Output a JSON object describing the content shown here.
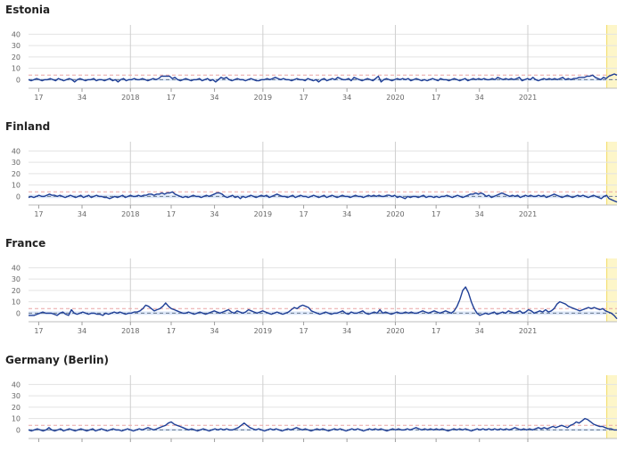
{
  "colors": {
    "series": "#1f3f96",
    "band": "#dbe6f8",
    "baseline": "#6b7a8c",
    "threshold": "#e9a5a5",
    "highlight": "#fdf6c9",
    "highlight_edge": "#f3dc63",
    "grid": "#e3e3e3",
    "year_line": "#cfcfcf"
  },
  "chart_data": [
    {
      "type": "line",
      "title": "Estonia",
      "yticks": [
        0,
        10,
        20,
        30,
        40
      ],
      "ylim": [
        -6,
        45
      ],
      "xlim": [
        0,
        231
      ],
      "xticks": [
        {
          "x": 4,
          "label": "17"
        },
        {
          "x": 21,
          "label": "34"
        },
        {
          "x": 40,
          "label": "2018"
        },
        {
          "x": 56,
          "label": "17"
        },
        {
          "x": 73,
          "label": "34"
        },
        {
          "x": 92,
          "label": "2019"
        },
        {
          "x": 108,
          "label": "17"
        },
        {
          "x": 125,
          "label": "34"
        },
        {
          "x": 144,
          "label": "2020"
        },
        {
          "x": 160,
          "label": "17"
        },
        {
          "x": 177,
          "label": "34"
        },
        {
          "x": 196,
          "label": "2021"
        }
      ],
      "year_lines": [
        40,
        92,
        144,
        196
      ],
      "threshold": 4,
      "baseline": 0,
      "band": [
        -1,
        1
      ],
      "highlight_from": 227,
      "series": [
        {
          "values": [
            0,
            -1,
            0,
            1,
            0,
            -1,
            0,
            0,
            1,
            0,
            -1,
            1,
            0,
            -1,
            0,
            1,
            0,
            -2,
            0,
            1,
            0,
            -1,
            0,
            0,
            1,
            -1,
            0,
            0,
            -1,
            0,
            1,
            -1,
            0,
            -2,
            0,
            1,
            -1,
            0,
            0,
            1,
            0,
            0,
            1,
            0,
            -1,
            0,
            1,
            0,
            1,
            3,
            3,
            3,
            3,
            1,
            2,
            0,
            -1,
            0,
            1,
            0,
            -1,
            0,
            0,
            1,
            -1,
            0,
            1,
            -1,
            0,
            -2,
            0,
            2,
            1,
            2,
            0,
            -1,
            0,
            1,
            0,
            0,
            -1,
            0,
            1,
            0,
            -1,
            -1,
            0,
            0,
            1,
            0,
            1,
            2,
            1,
            0,
            1,
            0,
            0,
            -1,
            0,
            1,
            0,
            0,
            -1,
            1,
            0,
            -1,
            0,
            -2,
            0,
            1,
            -1,
            0,
            1,
            0,
            2,
            1,
            0,
            0,
            1,
            -1,
            2,
            1,
            0,
            -1,
            0,
            1,
            0,
            -1,
            1,
            3,
            -2,
            0,
            1,
            0,
            -1,
            0,
            1,
            0,
            1,
            0,
            1,
            -1,
            0,
            1,
            0,
            -1,
            0,
            -1,
            0,
            1,
            0,
            -1,
            1,
            0,
            0,
            -1,
            0,
            1,
            0,
            -1,
            0,
            1,
            -1,
            0,
            1,
            0,
            1,
            0,
            1,
            0,
            0,
            1,
            0,
            2,
            1,
            0,
            1,
            0,
            1,
            0,
            1,
            2,
            -1,
            0,
            1,
            0,
            2,
            0,
            -1,
            0,
            1,
            0,
            1,
            0,
            1,
            0,
            1,
            2,
            0,
            1,
            0,
            1,
            1,
            2,
            2,
            2,
            3,
            3,
            4,
            2,
            1,
            0,
            2,
            1,
            3,
            4,
            5,
            4
          ]
        }
      ]
    },
    {
      "type": "line",
      "title": "Finland",
      "yticks": [
        0,
        10,
        20,
        30,
        40
      ],
      "ylim": [
        -6,
        45
      ],
      "xlim": [
        0,
        231
      ],
      "xticks": [
        {
          "x": 4,
          "label": "17"
        },
        {
          "x": 21,
          "label": "34"
        },
        {
          "x": 40,
          "label": "2018"
        },
        {
          "x": 56,
          "label": "17"
        },
        {
          "x": 73,
          "label": "34"
        },
        {
          "x": 92,
          "label": "2019"
        },
        {
          "x": 108,
          "label": "17"
        },
        {
          "x": 125,
          "label": "34"
        },
        {
          "x": 144,
          "label": "2020"
        },
        {
          "x": 160,
          "label": "17"
        },
        {
          "x": 177,
          "label": "34"
        },
        {
          "x": 196,
          "label": "2021"
        }
      ],
      "year_lines": [
        40,
        92,
        144,
        196
      ],
      "threshold": 4,
      "baseline": 0,
      "band": [
        -1.5,
        1.5
      ],
      "highlight_from": 227,
      "series": [
        {
          "values": [
            -1,
            0,
            -1,
            0,
            1,
            0,
            0,
            1,
            2,
            1,
            1,
            0,
            1,
            0,
            -1,
            0,
            1,
            0,
            -1,
            0,
            1,
            -1,
            0,
            1,
            -1,
            0,
            1,
            0,
            0,
            -1,
            -1,
            -2,
            -1,
            0,
            -1,
            0,
            1,
            -1,
            0,
            1,
            0,
            0,
            1,
            0,
            1,
            1,
            2,
            2,
            1,
            2,
            2,
            3,
            2,
            3,
            3,
            4,
            2,
            1,
            0,
            -1,
            0,
            -1,
            0,
            1,
            0,
            0,
            -1,
            0,
            1,
            0,
            1,
            2,
            3,
            3,
            2,
            0,
            -1,
            0,
            1,
            -1,
            0,
            -2,
            0,
            -1,
            0,
            1,
            0,
            -1,
            0,
            1,
            0,
            1,
            -1,
            0,
            1,
            2,
            1,
            0,
            0,
            -1,
            0,
            1,
            -1,
            0,
            1,
            0,
            0,
            -1,
            0,
            1,
            0,
            -1,
            0,
            1,
            -1,
            0,
            1,
            0,
            -1,
            0,
            1,
            0,
            0,
            -1,
            0,
            1,
            0,
            0,
            -1,
            0,
            1,
            0,
            1,
            0,
            1,
            0,
            0,
            1,
            1,
            0,
            1,
            -1,
            0,
            -1,
            -2,
            0,
            -1,
            0,
            0,
            -1,
            0,
            1,
            -1,
            0,
            0,
            -1,
            0,
            -1,
            0,
            0,
            1,
            0,
            -1,
            0,
            1,
            0,
            -1,
            0,
            1,
            2,
            2,
            3,
            2,
            3,
            2,
            0,
            1,
            -1,
            0,
            1,
            2,
            3,
            2,
            1,
            0,
            1,
            0,
            1,
            -1,
            0,
            1,
            0,
            1,
            0,
            0,
            1,
            0,
            1,
            -1,
            0,
            1,
            2,
            1,
            0,
            -1,
            0,
            1,
            0,
            -1,
            0,
            1,
            0,
            1,
            0,
            -1,
            0,
            1,
            0,
            -1,
            -2,
            0,
            1,
            -2,
            -3,
            -4,
            -5
          ]
        }
      ]
    },
    {
      "type": "line",
      "title": "France",
      "yticks": [
        0,
        10,
        20,
        30,
        40
      ],
      "ylim": [
        -6,
        45
      ],
      "xlim": [
        0,
        231
      ],
      "xticks": [
        {
          "x": 4,
          "label": "17"
        },
        {
          "x": 21,
          "label": "34"
        },
        {
          "x": 40,
          "label": "2018"
        },
        {
          "x": 56,
          "label": "17"
        },
        {
          "x": 73,
          "label": "34"
        },
        {
          "x": 92,
          "label": "2019"
        },
        {
          "x": 108,
          "label": "17"
        },
        {
          "x": 125,
          "label": "34"
        },
        {
          "x": 144,
          "label": "2020"
        },
        {
          "x": 160,
          "label": "17"
        },
        {
          "x": 177,
          "label": "34"
        },
        {
          "x": 196,
          "label": "2021"
        }
      ],
      "year_lines": [
        40,
        92,
        144,
        196
      ],
      "threshold": 4,
      "baseline": 0,
      "band": [
        -1.5,
        1.5
      ],
      "highlight_from": 227,
      "series": [
        {
          "values": [
            -2,
            -2,
            -2,
            -1,
            0,
            1,
            0,
            0,
            0,
            -1,
            -2,
            0,
            1,
            -1,
            -2,
            3,
            0,
            -1,
            0,
            1,
            0,
            -1,
            0,
            0,
            -1,
            -1,
            -2,
            0,
            -1,
            0,
            1,
            0,
            1,
            0,
            -1,
            0,
            0,
            1,
            1,
            2,
            4,
            7,
            6,
            4,
            2,
            3,
            4,
            6,
            9,
            6,
            4,
            3,
            2,
            1,
            0,
            0,
            1,
            0,
            -1,
            0,
            1,
            0,
            -1,
            0,
            1,
            2,
            1,
            0,
            1,
            2,
            3,
            1,
            0,
            2,
            1,
            0,
            1,
            3,
            2,
            1,
            0,
            1,
            2,
            1,
            0,
            -1,
            0,
            1,
            0,
            -1,
            0,
            1,
            3,
            5,
            4,
            6,
            7,
            6,
            5,
            2,
            1,
            0,
            -1,
            0,
            1,
            0,
            -1,
            0,
            0,
            1,
            2,
            0,
            -1,
            1,
            0,
            0,
            1,
            2,
            0,
            -1,
            0,
            1,
            0,
            3,
            0,
            1,
            0,
            -1,
            0,
            1,
            0,
            0,
            1,
            0,
            1,
            0,
            0,
            1,
            2,
            1,
            0,
            1,
            2,
            1,
            0,
            1,
            2,
            1,
            0,
            2,
            6,
            12,
            20,
            23,
            18,
            10,
            4,
            0,
            -2,
            -1,
            0,
            -1,
            0,
            1,
            -1,
            0,
            1,
            0,
            2,
            1,
            0,
            1,
            2,
            0,
            1,
            3,
            2,
            0,
            1,
            2,
            1,
            3,
            1,
            2,
            4,
            8,
            10,
            9,
            8,
            6,
            5,
            4,
            3,
            2,
            3,
            4,
            5,
            4,
            5,
            4,
            3,
            4,
            2,
            1,
            0,
            -2,
            -5
          ]
        }
      ]
    },
    {
      "type": "line",
      "title": "Germany (Berlin)",
      "yticks": [
        0,
        10,
        20,
        30,
        40
      ],
      "ylim": [
        -6,
        45
      ],
      "xlim": [
        0,
        231
      ],
      "xticks": [
        {
          "x": 4,
          "label": ""
        },
        {
          "x": 21,
          "label": ""
        },
        {
          "x": 40,
          "label": ""
        },
        {
          "x": 56,
          "label": ""
        },
        {
          "x": 73,
          "label": ""
        },
        {
          "x": 92,
          "label": ""
        },
        {
          "x": 108,
          "label": ""
        },
        {
          "x": 125,
          "label": ""
        },
        {
          "x": 144,
          "label": ""
        },
        {
          "x": 160,
          "label": ""
        },
        {
          "x": 177,
          "label": ""
        },
        {
          "x": 196,
          "label": ""
        }
      ],
      "year_lines": [
        40,
        92,
        144,
        196
      ],
      "threshold": 4,
      "baseline": 0,
      "band": [
        -1,
        1
      ],
      "highlight_from": 227,
      "series": [
        {
          "values": [
            0,
            -1,
            0,
            1,
            0,
            -1,
            0,
            2,
            0,
            -1,
            0,
            1,
            -1,
            0,
            1,
            0,
            -1,
            0,
            1,
            0,
            -1,
            0,
            1,
            -1,
            0,
            1,
            0,
            -1,
            0,
            1,
            0,
            0,
            -1,
            0,
            1,
            0,
            -1,
            0,
            1,
            0,
            1,
            2,
            1,
            0,
            1,
            2,
            3,
            4,
            6,
            7,
            5,
            4,
            3,
            2,
            1,
            0,
            1,
            0,
            -1,
            0,
            1,
            0,
            -1,
            0,
            1,
            0,
            1,
            0,
            1,
            0,
            0,
            1,
            2,
            4,
            6,
            4,
            2,
            1,
            0,
            1,
            0,
            -1,
            0,
            1,
            0,
            1,
            0,
            -1,
            0,
            1,
            0,
            1,
            2,
            1,
            0,
            1,
            0,
            -1,
            0,
            1,
            0,
            1,
            0,
            -1,
            0,
            1,
            0,
            1,
            0,
            -1,
            0,
            1,
            0,
            1,
            0,
            -1,
            0,
            1,
            0,
            1,
            0,
            1,
            0,
            -1,
            0,
            1,
            0,
            1,
            0,
            0,
            1,
            0,
            1,
            2,
            1,
            0,
            1,
            0,
            1,
            0,
            1,
            0,
            1,
            0,
            -1,
            0,
            1,
            0,
            1,
            0,
            1,
            0,
            -1,
            0,
            1,
            0,
            1,
            0,
            1,
            0,
            1,
            0,
            1,
            0,
            1,
            0,
            1,
            2,
            1,
            0,
            1,
            0,
            1,
            0,
            1,
            2,
            1,
            2,
            1,
            2,
            3,
            2,
            3,
            4,
            3,
            2,
            4,
            5,
            7,
            6,
            8,
            10,
            9,
            7,
            5,
            4,
            3,
            3,
            2,
            1,
            1,
            0,
            0
          ]
        }
      ]
    }
  ]
}
